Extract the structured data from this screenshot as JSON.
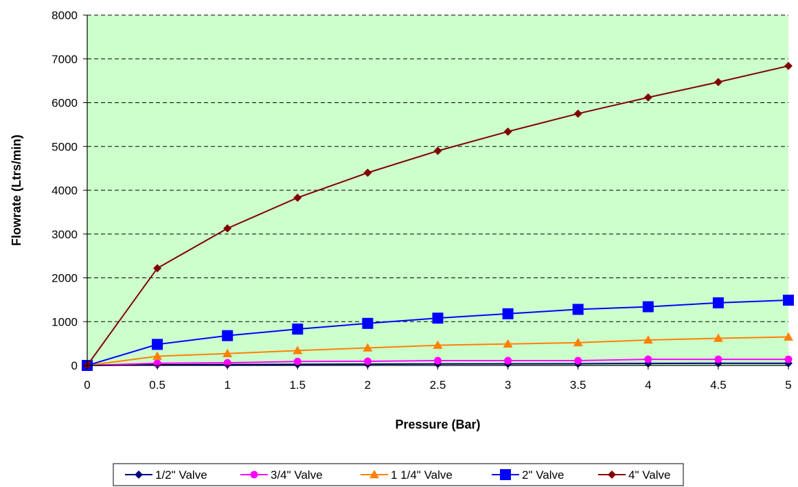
{
  "chart_data": {
    "type": "line",
    "xlabel": "Pressure (Bar)",
    "ylabel": "Flowrate (Ltrs/min)",
    "x": [
      0,
      0.5,
      1,
      1.5,
      2,
      2.5,
      3,
      3.5,
      4,
      4.5,
      5
    ],
    "x_tick_labels": [
      "0",
      "0.5",
      "1",
      "1.5",
      "2",
      "2.5",
      "3",
      "3.5",
      "4",
      "4.5",
      "5"
    ],
    "y_tick_labels": [
      "0",
      "1000",
      "2000",
      "3000",
      "4000",
      "5000",
      "6000",
      "7000",
      "8000"
    ],
    "xlim": [
      0,
      5
    ],
    "ylim": [
      0,
      8000
    ],
    "grid": "horizontal dashed",
    "legend_position": "bottom",
    "plot_background": "#ccffcc",
    "series": [
      {
        "name": "1/2\" Valve",
        "color": "#000080",
        "marker": "diamond",
        "values": [
          0,
          15,
          20,
          25,
          30,
          35,
          37,
          40,
          45,
          50,
          50
        ]
      },
      {
        "name": "3/4\" Valve",
        "color": "#ff00ff",
        "marker": "circle",
        "values": [
          0,
          50,
          60,
          90,
          95,
          110,
          110,
          110,
          140,
          140,
          140
        ]
      },
      {
        "name": "1 1/4\" Valve",
        "color": "#ff8000",
        "marker": "triangle",
        "values": [
          0,
          210,
          270,
          340,
          400,
          460,
          490,
          520,
          580,
          620,
          650
        ]
      },
      {
        "name": "2\" Valve",
        "color": "#0000ff",
        "marker": "square",
        "values": [
          0,
          480,
          680,
          830,
          960,
          1080,
          1180,
          1280,
          1340,
          1430,
          1490
        ]
      },
      {
        "name": "4\" Valve",
        "color": "#800000",
        "marker": "diamond",
        "values": [
          0,
          2220,
          3130,
          3830,
          4400,
          4900,
          5340,
          5750,
          6120,
          6470,
          6840
        ]
      }
    ]
  }
}
